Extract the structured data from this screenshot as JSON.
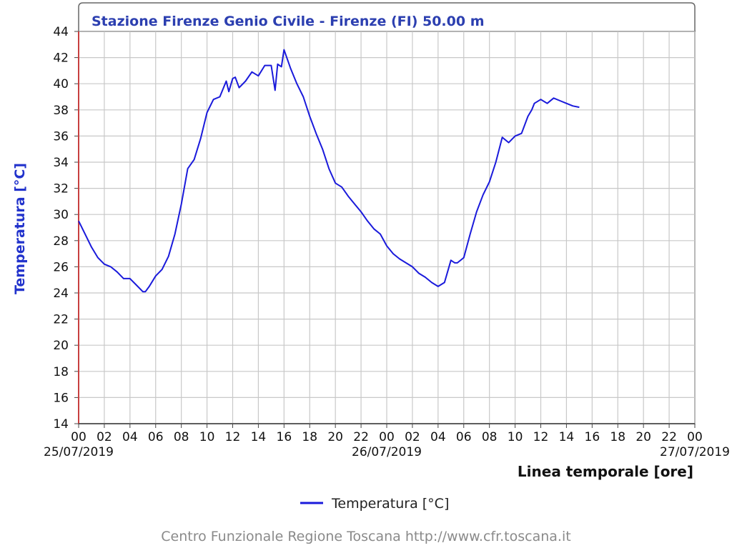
{
  "chart_data": {
    "type": "line",
    "title": "Stazione Firenze Genio Civile - Firenze (FI) 50.00 m",
    "ylabel": "Temperatura [°C]",
    "xlabel": "Linea temporale [ore]",
    "ylim": [
      14,
      44
    ],
    "yticks": [
      14,
      16,
      18,
      20,
      22,
      24,
      26,
      28,
      30,
      32,
      34,
      36,
      38,
      40,
      42,
      44
    ],
    "xlim_hours": [
      0,
      48
    ],
    "xtick_labels": [
      "00",
      "02",
      "04",
      "06",
      "08",
      "10",
      "12",
      "14",
      "16",
      "18",
      "20",
      "22",
      "00",
      "02",
      "04",
      "06",
      "08",
      "10",
      "12",
      "14",
      "16",
      "18",
      "20",
      "22",
      "00"
    ],
    "date_labels": [
      {
        "hour": 0,
        "text": "25/07/2019"
      },
      {
        "hour": 24,
        "text": "26/07/2019"
      },
      {
        "hour": 48,
        "text": "27/07/2019"
      }
    ],
    "grid": true,
    "legend_position": "bottom-center",
    "series": [
      {
        "name": "Temperatura [°C]",
        "color": "#1a1adb",
        "x_hours": [
          0,
          0.5,
          1,
          1.5,
          2,
          2.5,
          3,
          3.5,
          4,
          4.5,
          5,
          5.2,
          5.5,
          6,
          6.5,
          7,
          7.5,
          8,
          8.5,
          9,
          9.5,
          10,
          10.5,
          11,
          11.5,
          11.7,
          12,
          12.2,
          12.5,
          13,
          13.5,
          14,
          14.5,
          15,
          15.3,
          15.5,
          15.8,
          16,
          16.5,
          17,
          17.5,
          18,
          18.5,
          19,
          19.5,
          20,
          20.5,
          21,
          21.5,
          22,
          22.5,
          23,
          23.5,
          24,
          24.5,
          25,
          25.5,
          26,
          26.5,
          27,
          27.5,
          28,
          28.5,
          29,
          29.3,
          29.5,
          30,
          30.5,
          31,
          31.5,
          32,
          32.5,
          33,
          33.5,
          34,
          34.5,
          35,
          35.3,
          35.5,
          36,
          36.5,
          37,
          37.5,
          38,
          38.5,
          39
        ],
        "values": [
          29.5,
          28.5,
          27.5,
          26.7,
          26.2,
          26,
          25.6,
          25.1,
          25.1,
          24.6,
          24.1,
          24.1,
          24.5,
          25.3,
          25.8,
          26.8,
          28.5,
          30.8,
          33.5,
          34.2,
          35.8,
          37.8,
          38.8,
          39.0,
          40.2,
          39.4,
          40.4,
          40.5,
          39.7,
          40.2,
          40.9,
          40.6,
          41.4,
          41.4,
          39.5,
          41.5,
          41.3,
          42.6,
          41.2,
          40.0,
          39.0,
          37.5,
          36.2,
          35.0,
          33.5,
          32.4,
          32.1,
          31.4,
          30.8,
          30.2,
          29.5,
          28.9,
          28.5,
          27.6,
          27.0,
          26.6,
          26.3,
          26.0,
          25.5,
          25.2,
          24.8,
          24.5,
          24.8,
          26.5,
          26.3,
          26.3,
          26.7,
          28.5,
          30.2,
          31.5,
          32.5,
          34.0,
          35.9,
          35.5,
          36.0,
          36.2,
          37.5,
          38.0,
          38.5,
          38.8,
          38.5,
          38.9,
          38.7,
          38.5,
          38.3,
          38.2
        ]
      }
    ]
  },
  "footer": "Centro Funzionale Regione Toscana http://www.cfr.toscana.it"
}
